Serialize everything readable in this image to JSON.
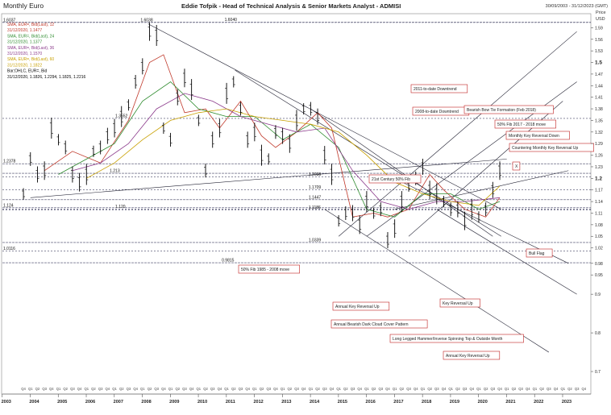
{
  "header": {
    "left_title": "Monthly Euro",
    "center_title": "Eddie Tofpik - Head of Technical Analysis & Senior Markets Analyst - ADMISI",
    "date_range": "30/09/2003 - 31/12/2023 (GMT)",
    "price_label": "Price",
    "currency_label": "USD"
  },
  "legend": [
    {
      "text": "SMA, EUR=, Bid(Last), 12",
      "color": "#c0392b"
    },
    {
      "text": "31/12/2020, 1.1477",
      "color": "#c0392b"
    },
    {
      "text": "SMA, EUR=, Bid(Last), 24",
      "color": "#2e8b2e"
    },
    {
      "text": "31/12/2020, 1.1377",
      "color": "#2e8b2e"
    },
    {
      "text": "SMA, EUR=, Bid(Last), 36",
      "color": "#8b3a8b"
    },
    {
      "text": "31/12/2020, 1.1570",
      "color": "#8b3a8b"
    },
    {
      "text": "SMA, EUR=, Bid(Last), 60",
      "color": "#c8a000"
    },
    {
      "text": "31/12/2020, 1.1822",
      "color": "#c8a000"
    },
    {
      "text": "Bar;OHLC, EUR=, Bid",
      "color": "#000000"
    },
    {
      "text": "31/12/2020, 1.1826, 1.2294, 1.1825, 1.2216",
      "color": "#000000"
    }
  ],
  "chart_data": {
    "type": "line",
    "title": "Monthly Euro",
    "x": [
      "2003",
      "2004",
      "2005",
      "2006",
      "2007",
      "2008",
      "2009",
      "2010",
      "2011",
      "2012",
      "2013",
      "2014",
      "2015",
      "2016",
      "2017",
      "2018",
      "2019",
      "2020",
      "2021",
      "2022",
      "2023"
    ],
    "quarter_ticks": [
      "Q4",
      "Q1",
      "Q2",
      "Q3"
    ],
    "y_ticks": [
      0.7,
      0.8,
      0.9,
      0.95,
      0.98,
      1.02,
      1.05,
      1.08,
      1.11,
      1.14,
      1.17,
      1.2,
      1.23,
      1.26,
      1.29,
      1.32,
      1.35,
      1.38,
      1.41,
      1.44,
      1.47,
      1.5,
      1.53,
      1.56,
      1.59
    ],
    "y_bold_ticks": [
      1.2,
      1.5
    ],
    "ylim": [
      0.65,
      1.62
    ],
    "series": [
      {
        "name": "Bar;OHLC, EUR=, Bid",
        "color": "#000000",
        "values": [
          [
            2003.75,
            1.16
          ],
          [
            2004.0,
            1.25
          ],
          [
            2004.25,
            1.21
          ],
          [
            2004.5,
            1.22
          ],
          [
            2004.75,
            1.33
          ],
          [
            2005.0,
            1.3
          ],
          [
            2005.25,
            1.28
          ],
          [
            2005.5,
            1.21
          ],
          [
            2005.75,
            1.19
          ],
          [
            2006.0,
            1.21
          ],
          [
            2006.25,
            1.27
          ],
          [
            2006.5,
            1.28
          ],
          [
            2006.75,
            1.31
          ],
          [
            2007.0,
            1.33
          ],
          [
            2007.25,
            1.36
          ],
          [
            2007.5,
            1.39
          ],
          [
            2007.75,
            1.45
          ],
          [
            2008.0,
            1.49
          ],
          [
            2008.25,
            1.58
          ],
          [
            2008.5,
            1.57
          ],
          [
            2008.75,
            1.33
          ],
          [
            2009.0,
            1.3
          ],
          [
            2009.25,
            1.41
          ],
          [
            2009.5,
            1.46
          ],
          [
            2009.75,
            1.43
          ],
          [
            2010.0,
            1.35
          ],
          [
            2010.25,
            1.22
          ],
          [
            2010.5,
            1.3
          ],
          [
            2010.75,
            1.33
          ],
          [
            2011.0,
            1.42
          ],
          [
            2011.25,
            1.45
          ],
          [
            2011.5,
            1.38
          ],
          [
            2011.75,
            1.3
          ],
          [
            2012.0,
            1.32
          ],
          [
            2012.25,
            1.26
          ],
          [
            2012.5,
            1.25
          ],
          [
            2012.75,
            1.32
          ],
          [
            2013.0,
            1.31
          ],
          [
            2013.25,
            1.29
          ],
          [
            2013.5,
            1.35
          ],
          [
            2013.75,
            1.38
          ],
          [
            2014.0,
            1.38
          ],
          [
            2014.25,
            1.36
          ],
          [
            2014.5,
            1.26
          ],
          [
            2014.75,
            1.21
          ],
          [
            2015.0,
            1.09
          ],
          [
            2015.25,
            1.11
          ],
          [
            2015.5,
            1.11
          ],
          [
            2015.75,
            1.08
          ],
          [
            2016.0,
            1.14
          ],
          [
            2016.25,
            1.11
          ],
          [
            2016.5,
            1.12
          ],
          [
            2016.75,
            1.04
          ],
          [
            2017.0,
            1.07
          ],
          [
            2017.25,
            1.14
          ],
          [
            2017.5,
            1.18
          ],
          [
            2017.75,
            1.2
          ],
          [
            2018.0,
            1.23
          ],
          [
            2018.25,
            1.17
          ],
          [
            2018.5,
            1.16
          ],
          [
            2018.75,
            1.14
          ],
          [
            2019.0,
            1.12
          ],
          [
            2019.25,
            1.12
          ],
          [
            2019.5,
            1.09
          ],
          [
            2019.75,
            1.12
          ],
          [
            2020.0,
            1.1
          ],
          [
            2020.25,
            1.12
          ],
          [
            2020.5,
            1.17
          ],
          [
            2020.75,
            1.22
          ]
        ]
      },
      {
        "name": "SMA, EUR=, Bid(Last), 12",
        "color": "#c0392b",
        "values": [
          [
            2004.5,
            1.22
          ],
          [
            2005.5,
            1.27
          ],
          [
            2006.5,
            1.24
          ],
          [
            2007.5,
            1.35
          ],
          [
            2008.25,
            1.5
          ],
          [
            2008.75,
            1.52
          ],
          [
            2009.5,
            1.37
          ],
          [
            2010.25,
            1.38
          ],
          [
            2010.75,
            1.33
          ],
          [
            2011.5,
            1.4
          ],
          [
            2012.25,
            1.31
          ],
          [
            2012.75,
            1.28
          ],
          [
            2013.5,
            1.32
          ],
          [
            2014.25,
            1.37
          ],
          [
            2014.75,
            1.33
          ],
          [
            2015.5,
            1.1
          ],
          [
            2016.25,
            1.11
          ],
          [
            2016.75,
            1.1
          ],
          [
            2017.5,
            1.12
          ],
          [
            2018.25,
            1.21
          ],
          [
            2018.75,
            1.17
          ],
          [
            2019.5,
            1.12
          ],
          [
            2020.25,
            1.1
          ],
          [
            2020.75,
            1.15
          ]
        ]
      },
      {
        "name": "SMA, EUR=, Bid(Last), 24",
        "color": "#2e8b2e",
        "values": [
          [
            2005.0,
            1.21
          ],
          [
            2006.0,
            1.25
          ],
          [
            2007.0,
            1.29
          ],
          [
            2008.0,
            1.4
          ],
          [
            2009.0,
            1.45
          ],
          [
            2010.0,
            1.38
          ],
          [
            2011.0,
            1.36
          ],
          [
            2012.0,
            1.36
          ],
          [
            2013.0,
            1.3
          ],
          [
            2014.0,
            1.34
          ],
          [
            2015.0,
            1.28
          ],
          [
            2016.0,
            1.12
          ],
          [
            2017.0,
            1.1
          ],
          [
            2018.0,
            1.16
          ],
          [
            2019.0,
            1.16
          ],
          [
            2020.0,
            1.12
          ],
          [
            2020.75,
            1.14
          ]
        ]
      },
      {
        "name": "SMA, EUR=, Bid(Last), 36",
        "color": "#8b3a8b",
        "values": [
          [
            2005.5,
            1.22
          ],
          [
            2006.5,
            1.24
          ],
          [
            2007.5,
            1.29
          ],
          [
            2008.5,
            1.38
          ],
          [
            2009.5,
            1.42
          ],
          [
            2010.5,
            1.4
          ],
          [
            2011.5,
            1.36
          ],
          [
            2012.5,
            1.34
          ],
          [
            2013.5,
            1.32
          ],
          [
            2014.5,
            1.33
          ],
          [
            2015.5,
            1.22
          ],
          [
            2016.5,
            1.14
          ],
          [
            2017.5,
            1.12
          ],
          [
            2018.5,
            1.14
          ],
          [
            2019.5,
            1.14
          ],
          [
            2020.75,
            1.15
          ]
        ]
      },
      {
        "name": "SMA, EUR=, Bid(Last), 60",
        "color": "#c8a000",
        "values": [
          [
            2006.0,
            1.2
          ],
          [
            2007.0,
            1.24
          ],
          [
            2008.0,
            1.3
          ],
          [
            2009.0,
            1.35
          ],
          [
            2010.0,
            1.37
          ],
          [
            2011.0,
            1.38
          ],
          [
            2012.0,
            1.36
          ],
          [
            2013.0,
            1.35
          ],
          [
            2014.0,
            1.34
          ],
          [
            2015.0,
            1.32
          ],
          [
            2016.0,
            1.26
          ],
          [
            2017.0,
            1.19
          ],
          [
            2018.0,
            1.16
          ],
          [
            2019.0,
            1.14
          ],
          [
            2020.0,
            1.13
          ],
          [
            2020.75,
            1.18
          ]
        ]
      }
    ],
    "level_labels": [
      {
        "text": "1.6037",
        "y": 1.6037,
        "x": 2003.0
      },
      {
        "text": "1.6038",
        "y": 1.6038,
        "x": 2007.9
      },
      {
        "text": "1.6040",
        "y": 1.604,
        "x": 2010.9
      },
      {
        "text": "1.3552",
        "y": 1.3552,
        "x": 2007.0
      },
      {
        "text": "1.2378",
        "y": 1.2378,
        "x": 2003.0
      },
      {
        "text": "1.2038",
        "y": 1.2038,
        "x": 2013.9
      },
      {
        "text": "1.213",
        "y": 1.213,
        "x": 2006.8
      },
      {
        "text": "1.1709",
        "y": 1.1709,
        "x": 2013.9
      },
      {
        "text": "1.1447",
        "y": 1.1447,
        "x": 2013.9
      },
      {
        "text": "1.1186",
        "y": 1.1186,
        "x": 2013.9
      },
      {
        "text": "1.124",
        "y": 1.124,
        "x": 2003.0
      },
      {
        "text": "1.120",
        "y": 1.12,
        "x": 2007.0
      },
      {
        "text": "1.0339",
        "y": 1.0339,
        "x": 2013.9
      },
      {
        "text": "1.0116",
        "y": 1.0116,
        "x": 2003.0
      },
      {
        "text": "0.9815",
        "y": 0.9815,
        "x": 2010.8
      }
    ],
    "annotations": [
      "2011-to-date Downtrend",
      "2008-to-date Downtrend",
      "Bearish Bow Tie Formation (Feb 2018)",
      "50% Fib 2017 - 2018 move",
      "Monthly Key Reversal Down",
      "Countering Monthly Key Reversal Up",
      "X",
      "21st Century 50% Fib",
      "50% Fib 1985 - 2008 move",
      "Bull Flag",
      "Annual Key Reversal Up",
      "Key Reversal Up",
      "Annual Bearish Dark Cloud Cover Pattern",
      "Long Legged Hammer/Inverse Spinning Top & Outside Month",
      "Annual Key Reversal Up"
    ],
    "xlabel": "",
    "ylabel": "",
    "grid": false,
    "legend": "top-left"
  }
}
